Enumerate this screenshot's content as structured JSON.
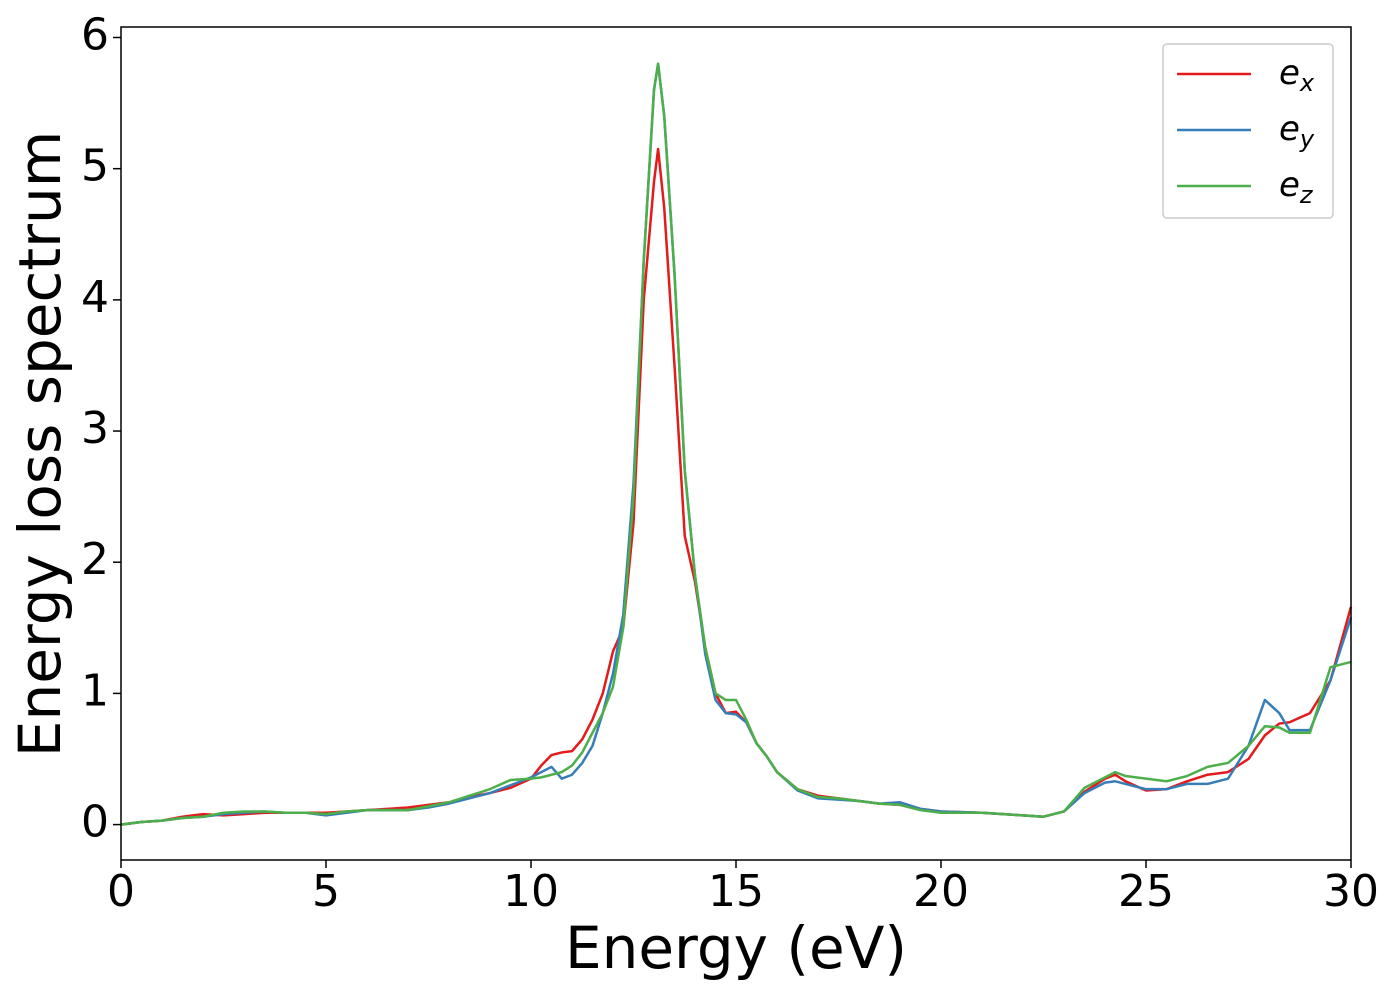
{
  "chart_data": {
    "type": "line",
    "xlabel": "Energy (eV)",
    "ylabel": "Energy loss spectrum",
    "x": [
      0,
      0.5,
      1,
      1.5,
      2,
      2.5,
      3,
      3.5,
      4,
      4.5,
      5,
      5.5,
      6,
      6.5,
      7,
      7.5,
      8,
      8.5,
      9,
      9.5,
      10,
      10.25,
      10.5,
      10.75,
      11,
      11.25,
      11.5,
      11.75,
      12,
      12.25,
      12.5,
      12.75,
      13,
      13.1,
      13.25,
      13.5,
      13.75,
      14,
      14.25,
      14.5,
      14.75,
      15,
      15.25,
      15.5,
      15.75,
      16,
      16.5,
      17,
      17.5,
      18,
      18.5,
      19,
      19.5,
      20,
      21,
      22,
      22.5,
      23,
      23.5,
      24,
      24.25,
      24.5,
      25,
      25.5,
      26,
      26.5,
      27,
      27.5,
      27.9,
      28.25,
      28.5,
      29,
      29.5,
      30
    ],
    "series": [
      {
        "name": "ex",
        "color": "#e41a1c",
        "values": [
          0,
          0.02,
          0.03,
          0.06,
          0.08,
          0.07,
          0.08,
          0.09,
          0.09,
          0.09,
          0.09,
          0.1,
          0.11,
          0.12,
          0.13,
          0.15,
          0.17,
          0.21,
          0.24,
          0.28,
          0.35,
          0.45,
          0.53,
          0.55,
          0.56,
          0.65,
          0.8,
          1.0,
          1.32,
          1.5,
          2.3,
          4.0,
          4.9,
          5.15,
          4.7,
          3.5,
          2.2,
          1.85,
          1.35,
          1.0,
          0.85,
          0.86,
          0.78,
          0.62,
          0.52,
          0.4,
          0.27,
          0.22,
          0.2,
          0.18,
          0.16,
          0.15,
          0.12,
          0.1,
          0.09,
          0.07,
          0.06,
          0.1,
          0.25,
          0.35,
          0.38,
          0.33,
          0.26,
          0.27,
          0.33,
          0.38,
          0.4,
          0.5,
          0.68,
          0.77,
          0.78,
          0.85,
          1.1,
          1.66
        ]
      },
      {
        "name": "ey",
        "color": "#377eb8",
        "values": [
          0,
          0.02,
          0.03,
          0.05,
          0.06,
          0.08,
          0.09,
          0.1,
          0.09,
          0.09,
          0.07,
          0.09,
          0.11,
          0.11,
          0.11,
          0.13,
          0.16,
          0.2,
          0.24,
          0.3,
          0.36,
          0.4,
          0.44,
          0.35,
          0.38,
          0.47,
          0.6,
          0.85,
          1.15,
          1.6,
          2.6,
          4.3,
          5.6,
          5.8,
          5.4,
          4.2,
          2.7,
          1.9,
          1.3,
          0.95,
          0.85,
          0.84,
          0.78,
          0.62,
          0.52,
          0.4,
          0.26,
          0.2,
          0.19,
          0.18,
          0.16,
          0.17,
          0.12,
          0.1,
          0.09,
          0.07,
          0.06,
          0.1,
          0.24,
          0.32,
          0.33,
          0.31,
          0.27,
          0.27,
          0.31,
          0.31,
          0.35,
          0.6,
          0.95,
          0.85,
          0.72,
          0.72,
          1.1,
          1.58
        ]
      },
      {
        "name": "ez",
        "color": "#4daf4a",
        "values": [
          0,
          0.02,
          0.03,
          0.05,
          0.06,
          0.09,
          0.1,
          0.1,
          0.09,
          0.09,
          0.08,
          0.1,
          0.11,
          0.11,
          0.11,
          0.14,
          0.17,
          0.22,
          0.27,
          0.34,
          0.35,
          0.36,
          0.38,
          0.4,
          0.45,
          0.55,
          0.7,
          0.85,
          1.05,
          1.5,
          2.5,
          4.3,
          5.6,
          5.8,
          5.4,
          4.2,
          2.7,
          1.9,
          1.35,
          1.0,
          0.95,
          0.95,
          0.8,
          0.62,
          0.52,
          0.4,
          0.27,
          0.21,
          0.2,
          0.18,
          0.16,
          0.15,
          0.11,
          0.09,
          0.09,
          0.07,
          0.06,
          0.1,
          0.28,
          0.36,
          0.4,
          0.37,
          0.35,
          0.33,
          0.37,
          0.44,
          0.47,
          0.6,
          0.75,
          0.74,
          0.7,
          0.7,
          1.2,
          1.24
        ]
      }
    ],
    "xlim": [
      0,
      30
    ],
    "xticks": [
      0,
      5,
      10,
      15,
      20,
      25,
      30
    ],
    "ylim": [
      -0.27,
      6.08
    ],
    "yticks": [
      0,
      1,
      2,
      3,
      4,
      5,
      6
    ],
    "grid": false,
    "legend": "upper right"
  }
}
